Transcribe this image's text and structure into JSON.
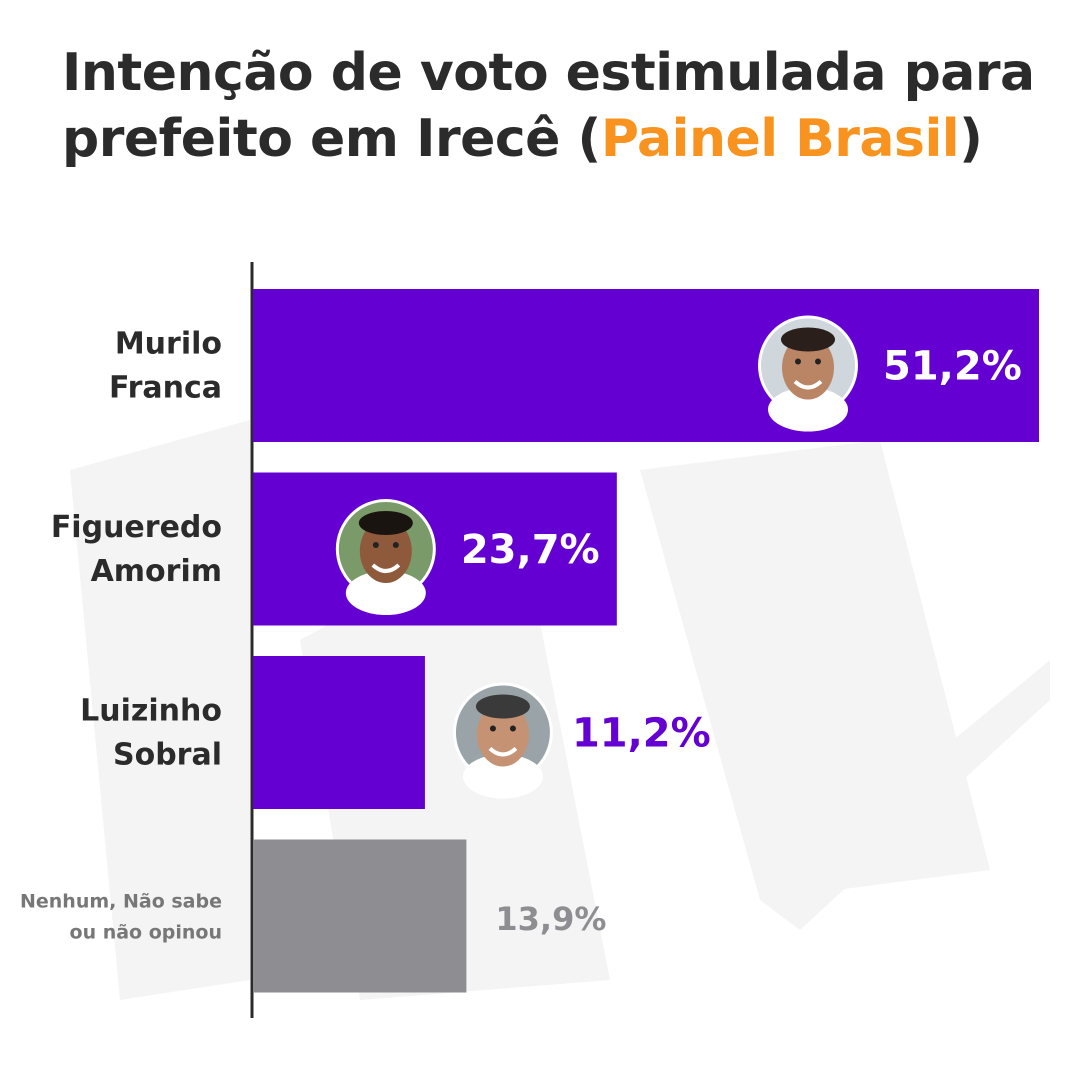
{
  "title": {
    "before": "Intenção de voto estimulada para prefeito em Irecê (",
    "highlight": "Painel Brasil",
    "after": ")"
  },
  "colors": {
    "candidate_bar": "#6400d2",
    "other_bar": "#8e8d92",
    "title_accent": "#f7931e",
    "label_dark": "#2b2b2b",
    "label_grey": "#777777"
  },
  "chart_data": {
    "type": "bar",
    "orientation": "horizontal",
    "categories": [
      "Murilo Franca",
      "Figueredo Amorim",
      "Luizinho Sobral",
      "Nenhum, Não sabe ou não opinou"
    ],
    "category_lines": [
      [
        "Murilo",
        "Franca"
      ],
      [
        "Figueredo",
        "Amorim"
      ],
      [
        "Luizinho",
        "Sobral"
      ],
      [
        "Nenhum, Não sabe",
        "ou não opinou"
      ]
    ],
    "values": [
      51.2,
      23.7,
      11.2,
      13.9
    ],
    "value_labels": [
      "51,2%",
      "23,7%",
      "11,2%",
      "13,9%"
    ],
    "xlim": [
      0,
      55
    ],
    "grid": false,
    "legend": "none",
    "photos": [
      true,
      true,
      true,
      false
    ]
  }
}
